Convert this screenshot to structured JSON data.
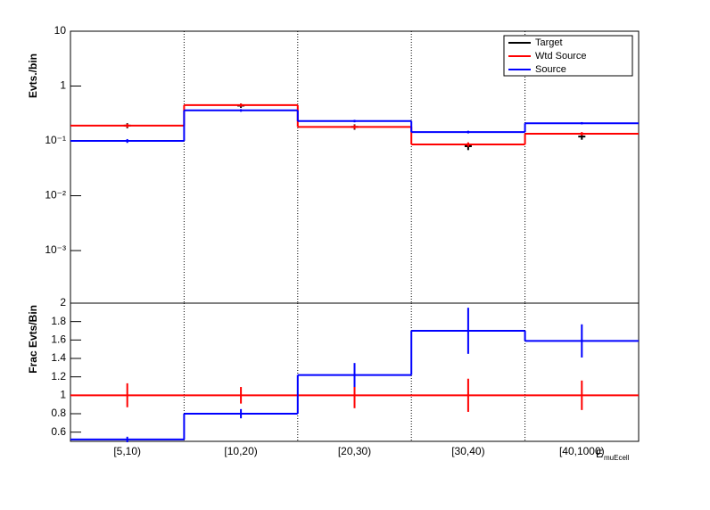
{
  "chart_data": [
    {
      "type": "step",
      "y_label": "Evts./bin",
      "log_y": true,
      "grid_x": true,
      "ylim": [
        0.00011,
        10
      ],
      "yticks": [
        {
          "value": 0.001,
          "label": "10⁻³"
        },
        {
          "value": 0.01,
          "label": "10⁻²"
        },
        {
          "value": 0.1,
          "label": "10⁻¹"
        },
        1,
        10
      ],
      "legend": "top-right",
      "series": [
        {
          "name": "Target",
          "color": "#000000",
          "style": "errorbar",
          "values": [
            0.19,
            0.44,
            0.18,
            0.08,
            0.12
          ],
          "errors": [
            0.02,
            0.04,
            0.02,
            0.012,
            0.015
          ]
        },
        {
          "name": "Wtd Source",
          "color": "#ff0000",
          "style": "step",
          "values": [
            0.19,
            0.45,
            0.18,
            0.086,
            0.135
          ],
          "errors": [
            0.015,
            0.03,
            0.015,
            0.008,
            0.01
          ]
        },
        {
          "name": "Source",
          "color": "#0000ff",
          "style": "step",
          "values": [
            0.1,
            0.36,
            0.23,
            0.145,
            0.21
          ],
          "errors": [
            0.008,
            0.02,
            0.012,
            0.008,
            0.01
          ]
        }
      ]
    },
    {
      "type": "step",
      "y_label": "Frac Evts/Bin",
      "x_label": "E",
      "x_label_sub": "muEcell",
      "grid_x": true,
      "categories": [
        "[5,10)",
        "[10,20)",
        "[20,30)",
        "[30,40)",
        "[40,1000)"
      ],
      "ylim": [
        0.5,
        2
      ],
      "yticks": [
        0.6,
        0.8,
        1,
        1.2,
        1.4,
        1.6,
        1.8,
        2
      ],
      "series": [
        {
          "name": "Wtd Source",
          "color": "#ff0000",
          "values": [
            1,
            1,
            1,
            1,
            1
          ],
          "errors": [
            0.13,
            0.09,
            0.14,
            0.18,
            0.16
          ]
        },
        {
          "name": "Source",
          "color": "#0000ff",
          "values": [
            0.52,
            0.8,
            1.22,
            1.7,
            1.59
          ],
          "errors": [
            0.03,
            0.05,
            0.13,
            0.25,
            0.18
          ]
        }
      ]
    }
  ]
}
